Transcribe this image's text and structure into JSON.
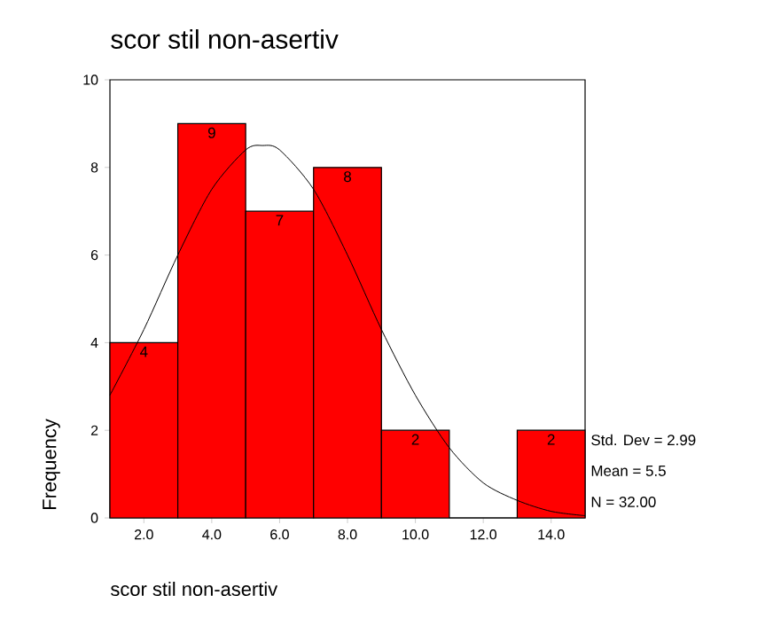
{
  "chart_data": {
    "type": "histogram",
    "title": "scor stil non-asertiv",
    "xlabel": "scor stil non-asertiv",
    "ylabel": "Frequency",
    "bins": [
      1,
      3,
      5,
      7,
      9,
      11,
      13,
      15
    ],
    "values": [
      4,
      9,
      7,
      8,
      2,
      0,
      2
    ],
    "color": "#ff0000",
    "value_labels": [
      "4",
      "9",
      "7",
      "8",
      "2",
      null,
      "2"
    ],
    "series": [
      {
        "type": "line",
        "color": "#000000",
        "x": [
          1,
          2,
          3,
          4,
          5,
          5.5,
          6,
          7,
          8,
          9,
          10,
          11,
          12,
          13,
          14,
          15
        ],
        "values": [
          2.8,
          4.3,
          6.0,
          7.5,
          8.4,
          8.5,
          8.4,
          7.5,
          6.0,
          4.3,
          2.8,
          1.6,
          0.8,
          0.4,
          0.15,
          0.05
        ]
      }
    ],
    "xlim": [
      1,
      15
    ],
    "ylim": [
      0,
      10
    ],
    "xticks": [
      {
        "value": 2,
        "label": "2.0"
      },
      {
        "value": 4,
        "label": "4.0"
      },
      {
        "value": 6,
        "label": "6.0"
      },
      {
        "value": 8,
        "label": "8.0"
      },
      {
        "value": 10,
        "label": "10.0"
      },
      {
        "value": 12,
        "label": "12.0"
      },
      {
        "value": 14,
        "label": "14.0"
      }
    ],
    "yticks": [
      0,
      2,
      4,
      6,
      8,
      10
    ],
    "annotations": [
      "Std. Dev = 2.99",
      "Mean = 5.5",
      "N = 32.00"
    ],
    "grid": false
  }
}
